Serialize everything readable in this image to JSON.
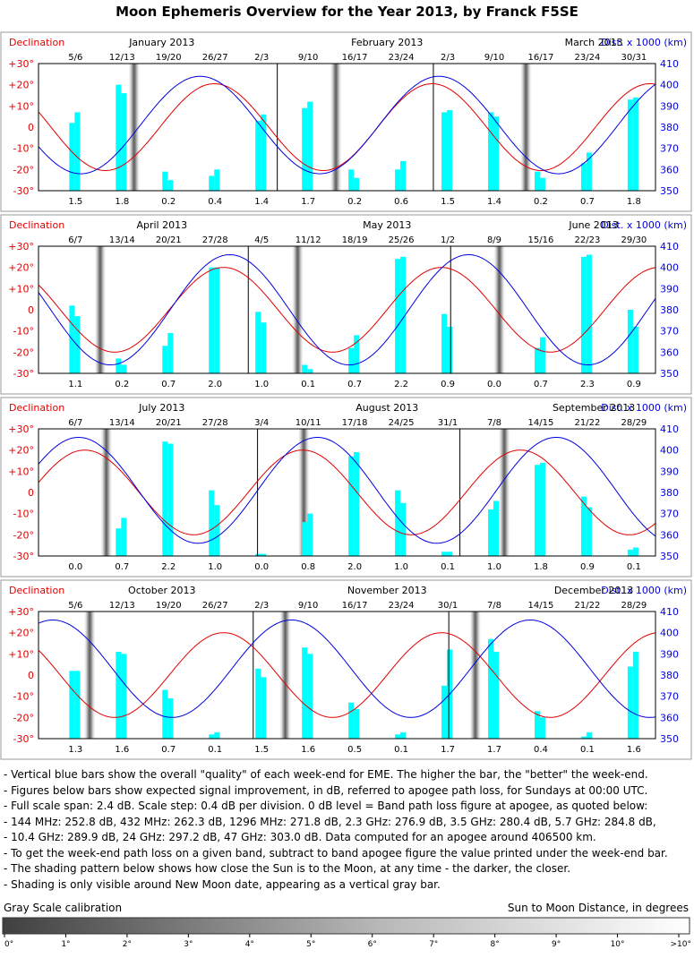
{
  "title": "Moon Ephemeris Overview for the Year 2013, by Franck F5SE",
  "chart_data": {
    "type": "bar+line",
    "left_axis": {
      "label": "Declination",
      "ticks": [
        "+30°",
        "+20°",
        "+10°",
        "0",
        "-10°",
        "-20°",
        "-30°"
      ],
      "range": [
        -30,
        30
      ]
    },
    "right_axis": {
      "label": "Dist. x 1000 (km)",
      "ticks": [
        "410",
        "400",
        "390",
        "380",
        "370",
        "360",
        "350"
      ],
      "range": [
        350,
        410
      ]
    },
    "panels": [
      {
        "months": [
          "January 2013",
          "February 2013",
          "March 2013"
        ],
        "weekends": [
          "5/6",
          "12/13",
          "19/20",
          "26/27",
          "2/3",
          "9/10",
          "16/17",
          "23/24",
          "2/3",
          "9/10",
          "16/17",
          "23/24",
          "30/31"
        ],
        "improvement_db": [
          "1.5",
          "1.8",
          "0.2",
          "0.4",
          "1.4",
          "1.7",
          "0.2",
          "0.6",
          "1.5",
          "1.4",
          "0.2",
          "0.7",
          "1.8"
        ],
        "bar_pairs": [
          [
            2,
            7
          ],
          [
            20,
            16
          ],
          [
            -21,
            -25
          ],
          [
            -23,
            -20
          ],
          [
            3,
            6
          ],
          [
            9,
            12
          ],
          [
            -20,
            -24
          ],
          [
            -20,
            -16
          ],
          [
            7,
            8
          ],
          [
            7,
            5
          ],
          [
            -21,
            -24
          ],
          [
            -17,
            -12
          ],
          [
            13,
            14
          ]
        ],
        "month_dividers": [
          0.387,
          0.64
        ],
        "gray_bars": [
          0.155,
          0.482,
          0.79
        ],
        "decl": {
          "amp": 20.5,
          "period": 0.353,
          "peak": 0.285
        },
        "dist": {
          "center": 381,
          "amp": 23,
          "period": 0.387,
          "peak": 0.262,
          "amp_drift": 0
        }
      },
      {
        "months": [
          "April 2013",
          "May 2013",
          "June 2013"
        ],
        "weekends": [
          "6/7",
          "13/14",
          "20/21",
          "27/28",
          "4/5",
          "11/12",
          "18/19",
          "25/26",
          "1/2",
          "8/9",
          "15/16",
          "22/23",
          "29/30"
        ],
        "improvement_db": [
          "1.1",
          "0.2",
          "0.7",
          "2.0",
          "1.0",
          "0.1",
          "0.7",
          "2.2",
          "0.9",
          "0.0",
          "0.7",
          "2.3",
          "0.9"
        ],
        "bar_pairs": [
          [
            2,
            -3
          ],
          [
            -23,
            -26
          ],
          [
            -17,
            -11
          ],
          [
            20,
            20
          ],
          [
            -1,
            -6
          ],
          [
            -26,
            -28
          ],
          [
            -18,
            -12
          ],
          [
            24,
            25
          ],
          [
            -2,
            -8
          ],
          [
            -30,
            -30
          ],
          [
            -18,
            -13
          ],
          [
            25,
            26
          ],
          [
            0,
            -8
          ]
        ],
        "month_dividers": [
          0.34,
          0.668
        ],
        "gray_bars": [
          0.1,
          0.42,
          0.747
        ],
        "decl": {
          "amp": 20,
          "period": 0.353,
          "peak": 0.3
        },
        "dist": {
          "center": 380,
          "amp": 26,
          "period": 0.387,
          "peak": 0.31,
          "amp_drift": 0
        }
      },
      {
        "months": [
          "July 2013",
          "August 2013",
          "September 2013"
        ],
        "weekends": [
          "6/7",
          "13/14",
          "20/21",
          "27/28",
          "3/4",
          "10/11",
          "17/18",
          "24/25",
          "31/1",
          "7/8",
          "14/15",
          "21/22",
          "28/29"
        ],
        "improvement_db": [
          "0.0",
          "0.7",
          "2.2",
          "1.0",
          "0.0",
          "0.8",
          "2.0",
          "1.0",
          "0.1",
          "1.0",
          "1.8",
          "0.9",
          "0.1"
        ],
        "bar_pairs": [
          [
            -30,
            -30
          ],
          [
            -17,
            -12
          ],
          [
            24,
            23
          ],
          [
            1,
            -6
          ],
          [
            -29,
            -29
          ],
          [
            -14,
            -10
          ],
          [
            17,
            19
          ],
          [
            1,
            -5
          ],
          [
            -28,
            -28
          ],
          [
            -8,
            -4
          ],
          [
            13,
            14
          ],
          [
            -2,
            -7
          ],
          [
            -27,
            -26
          ]
        ],
        "month_dividers": [
          0.355,
          0.683
        ],
        "gray_bars": [
          0.11,
          0.43,
          0.755
        ],
        "decl": {
          "amp": 20,
          "period": 0.353,
          "peak": 0.075
        },
        "dist": {
          "center": 381,
          "amp": 25,
          "period": 0.387,
          "peak": 0.065,
          "amp_drift": 0
        }
      },
      {
        "months": [
          "October 2013",
          "November 2013",
          "December 2013"
        ],
        "weekends": [
          "5/6",
          "12/13",
          "19/20",
          "26/27",
          "2/3",
          "9/10",
          "16/17",
          "23/24",
          "30/1",
          "7/8",
          "14/15",
          "21/22",
          "28/29"
        ],
        "improvement_db": [
          "1.3",
          "1.6",
          "0.7",
          "0.1",
          "1.5",
          "1.6",
          "0.5",
          "0.1",
          "1.7",
          "1.7",
          "0.4",
          "0.1",
          "1.6"
        ],
        "bar_pairs": [
          [
            2,
            2
          ],
          [
            11,
            10
          ],
          [
            -7,
            -11
          ],
          [
            -28,
            -27
          ],
          [
            3,
            -1
          ],
          [
            13,
            10
          ],
          [
            -13,
            -16
          ],
          [
            -28,
            -27
          ],
          [
            -5,
            12
          ],
          [
            17,
            11
          ],
          [
            -17,
            -20
          ],
          [
            -29,
            -27
          ],
          [
            4,
            11
          ]
        ],
        "month_dividers": [
          0.348,
          0.665
        ],
        "gray_bars": [
          0.083,
          0.4,
          0.708
        ],
        "decl": {
          "amp": 20,
          "period": 0.353,
          "peak": 0.3
        },
        "dist": {
          "center": 383,
          "amp": 23,
          "period": 0.387,
          "peak": 0.41,
          "amp_drift": 0
        }
      }
    ]
  },
  "notes": [
    "- Vertical blue bars show the overall \"quality\" of each week-end for EME. The higher the bar, the \"better\" the week-end.",
    "- Figures below bars show expected signal improvement, in dB, referred to apogee path loss, for Sundays at 00:00 UTC.",
    "- Full scale span: 2.4 dB.  Scale step: 0.4 dB per division.  0 dB level = Band path loss figure at apogee, as quoted below:",
    "- 144 MHz: 252.8 dB,  432 MHz: 262.3 dB,  1296 MHz: 271.8 dB,  2.3 GHz: 276.9 dB,  3.5 GHz: 280.4 dB,  5.7 GHz: 284.8 dB,",
    "- 10.4 GHz: 289.9 dB,   24 GHz: 297.2 dB,  47 GHz: 303.0 dB.  Data computed for an apogee around 406500 km.",
    "- To get the week-end path loss on a given band, subtract to band apogee figure the value printed under the week-end bar.",
    "- The shading pattern below shows how close the Sun is to the Moon, at any time - the darker, the closer.",
    "- Shading is only visible around New Moon date, appearing as a vertical gray bar."
  ],
  "gray_scale": {
    "title": "Gray Scale calibration",
    "right_label": "Sun to Moon Distance, in degrees",
    "ticks": [
      "0°",
      "1°",
      "2°",
      "3°",
      "4°",
      "5°",
      "6°",
      "7°",
      "8°",
      "9°",
      "10°",
      ">10°"
    ]
  },
  "colors": {
    "declination": "#e00000",
    "distance": "#0000e0",
    "bars": "#00ffff",
    "grid": "#000000"
  }
}
